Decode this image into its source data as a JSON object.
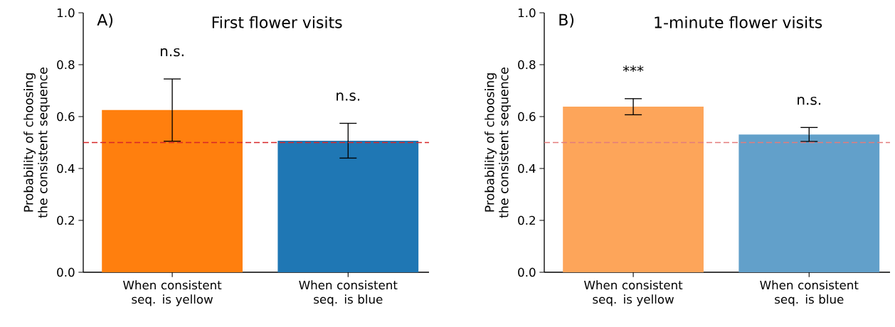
{
  "chart_data": [
    {
      "type": "bar",
      "title": "First flower visits",
      "ylabel": "Probability of choosing the consistent sequence",
      "categories": [
        "When consistent seq. is yellow",
        "When consistent seq. is blue"
      ],
      "values": [
        0.625,
        0.507
      ],
      "errors": [
        0.12,
        0.067
      ],
      "colors": [
        "#ff7f0e",
        "#1f77b4"
      ],
      "ylim": [
        0,
        1
      ],
      "yticks": [
        {
          "value": 0,
          "label": "0.0"
        },
        {
          "value": 0.2,
          "label": "0.2"
        },
        {
          "value": 0.4,
          "label": "0.4"
        },
        {
          "value": 0.6,
          "label": "0.6"
        },
        {
          "value": 0.8,
          "label": "0.8"
        },
        {
          "value": 1,
          "label": "1.0"
        }
      ],
      "ref_lines": [
        {
          "axis": "y",
          "value": 0.5,
          "color": "#d62728",
          "line_style": "dashed"
        }
      ],
      "annotations": [
        "A)",
        "n.s.",
        "n.s."
      ]
    },
    {
      "type": "bar",
      "title": "1-minute flower visits",
      "ylabel": "Probability of choosing the consistent sequence",
      "categories": [
        "When consistent seq. is yellow",
        "When consistent seq. is blue"
      ],
      "values": [
        0.638,
        0.531
      ],
      "errors": [
        0.031,
        0.027
      ],
      "colors": [
        "#fda55a",
        "#62a0ca"
      ],
      "ylim": [
        0,
        1
      ],
      "yticks": [
        {
          "value": 0,
          "label": "0.0"
        },
        {
          "value": 0.2,
          "label": "0.2"
        },
        {
          "value": 0.4,
          "label": "0.4"
        },
        {
          "value": 0.6,
          "label": "0.6"
        },
        {
          "value": 0.8,
          "label": "0.8"
        },
        {
          "value": 1,
          "label": "1.0"
        }
      ],
      "ref_lines": [
        {
          "axis": "y",
          "value": 0.5,
          "color": "#e37c7c",
          "line_style": "dashed"
        }
      ],
      "annotations": [
        "B)",
        "***",
        "n.s."
      ]
    }
  ]
}
